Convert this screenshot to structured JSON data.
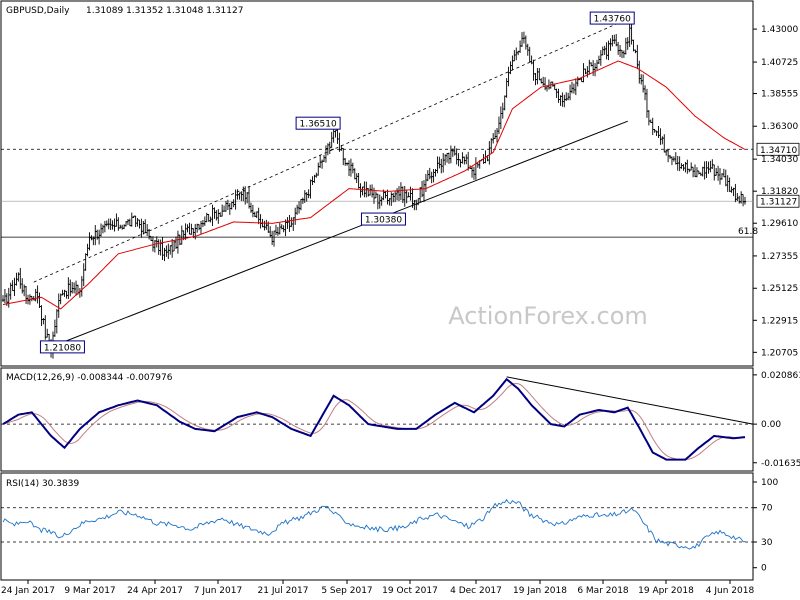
{
  "header": {
    "symbol": "GBPUSD,Daily",
    "ohlc": "1.31089 1.31352 1.31048 1.31127"
  },
  "watermark": "ActionForex.com",
  "colors": {
    "price": "#000000",
    "ma": "#e00000",
    "macd": "#000080",
    "signal": "#c08080",
    "rsi": "#1e73c8",
    "grid": "#000000",
    "label_box": "#000080"
  },
  "chart_data": [
    {
      "type": "candlestick",
      "title": "GBPUSD,Daily",
      "ylim": [
        1.199,
        1.448
      ],
      "y_ticks": [
        "1.43000",
        "1.40725",
        "1.38555",
        "1.36300",
        "1.34030",
        "1.31820",
        "1.29610",
        "1.27355",
        "1.25125",
        "1.22915",
        "1.20705"
      ],
      "x_ticks": [
        "24 Jan 2017",
        "9 Mar 2017",
        "24 Apr 2017",
        "7 Jun 2017",
        "21 Jul 2017",
        "5 Sep 2017",
        "19 Oct 2017",
        "4 Dec 2017",
        "19 Jan 2018",
        "6 Mar 2018",
        "19 Apr 2018",
        "4 Jun 2018"
      ],
      "current_price_label": "1.31127",
      "current_price": 1.31127,
      "hline_label": "1.34710",
      "hline_value": 1.3471,
      "fib_label": "61.8",
      "fib_value": 1.2865,
      "annotations": [
        {
          "text": "1.21080",
          "value": 1.2108
        },
        {
          "text": "1.36510",
          "value": 1.3651
        },
        {
          "text": "1.30380",
          "value": 1.3038
        },
        {
          "text": "1.43760",
          "value": 1.4376
        }
      ],
      "close_anchors": [
        [
          0,
          1.24
        ],
        [
          8,
          1.26
        ],
        [
          12,
          1.245
        ],
        [
          18,
          1.247
        ],
        [
          22,
          1.22
        ],
        [
          25,
          1.21
        ],
        [
          30,
          1.25
        ],
        [
          40,
          1.25
        ],
        [
          45,
          1.287
        ],
        [
          55,
          1.293
        ],
        [
          70,
          1.298
        ],
        [
          78,
          1.283
        ],
        [
          85,
          1.275
        ],
        [
          95,
          1.29
        ],
        [
          108,
          1.302
        ],
        [
          118,
          1.307
        ],
        [
          125,
          1.32
        ],
        [
          132,
          1.3
        ],
        [
          140,
          1.287
        ],
        [
          150,
          1.296
        ],
        [
          160,
          1.322
        ],
        [
          168,
          1.345
        ],
        [
          172,
          1.36
        ],
        [
          178,
          1.34
        ],
        [
          185,
          1.322
        ],
        [
          195,
          1.313
        ],
        [
          205,
          1.318
        ],
        [
          215,
          1.312
        ],
        [
          225,
          1.335
        ],
        [
          235,
          1.345
        ],
        [
          245,
          1.333
        ],
        [
          252,
          1.343
        ],
        [
          258,
          1.365
        ],
        [
          264,
          1.405
        ],
        [
          270,
          1.425
        ],
        [
          276,
          1.4
        ],
        [
          285,
          1.39
        ],
        [
          292,
          1.382
        ],
        [
          300,
          1.396
        ],
        [
          310,
          1.41
        ],
        [
          318,
          1.42
        ],
        [
          322,
          1.41
        ],
        [
          326,
          1.43
        ],
        [
          330,
          1.405
        ],
        [
          336,
          1.37
        ],
        [
          344,
          1.349
        ],
        [
          352,
          1.338
        ],
        [
          360,
          1.33
        ],
        [
          368,
          1.335
        ],
        [
          375,
          1.327
        ],
        [
          383,
          1.313
        ],
        [
          386,
          1.311
        ]
      ],
      "ma_anchors": [
        [
          0,
          1.24
        ],
        [
          20,
          1.245
        ],
        [
          30,
          1.237
        ],
        [
          45,
          1.255
        ],
        [
          60,
          1.275
        ],
        [
          80,
          1.282
        ],
        [
          100,
          1.287
        ],
        [
          120,
          1.297
        ],
        [
          140,
          1.296
        ],
        [
          160,
          1.3
        ],
        [
          180,
          1.32
        ],
        [
          200,
          1.318
        ],
        [
          220,
          1.32
        ],
        [
          240,
          1.332
        ],
        [
          255,
          1.345
        ],
        [
          265,
          1.375
        ],
        [
          280,
          1.39
        ],
        [
          300,
          1.396
        ],
        [
          320,
          1.408
        ],
        [
          330,
          1.403
        ],
        [
          345,
          1.39
        ],
        [
          360,
          1.37
        ],
        [
          375,
          1.355
        ],
        [
          386,
          1.347
        ]
      ]
    },
    {
      "type": "line",
      "title": "MACD(12,26,9) -0.008344 -0.007976",
      "ylim": [
        -0.019,
        0.0225
      ],
      "y_ticks": [
        "0.020861",
        "0.00",
        "-0.016357"
      ],
      "zero_label": "0.00",
      "macd_anchors": [
        [
          0,
          0.0
        ],
        [
          8,
          0.004
        ],
        [
          15,
          0.005
        ],
        [
          25,
          -0.005
        ],
        [
          32,
          -0.01
        ],
        [
          40,
          -0.002
        ],
        [
          50,
          0.005
        ],
        [
          60,
          0.008
        ],
        [
          70,
          0.01
        ],
        [
          80,
          0.008
        ],
        [
          92,
          0.001
        ],
        [
          100,
          -0.002
        ],
        [
          110,
          -0.003
        ],
        [
          122,
          0.003
        ],
        [
          132,
          0.005
        ],
        [
          140,
          0.003
        ],
        [
          150,
          -0.002
        ],
        [
          160,
          -0.005
        ],
        [
          172,
          0.012
        ],
        [
          180,
          0.008
        ],
        [
          190,
          0.0
        ],
        [
          205,
          -0.002
        ],
        [
          215,
          -0.002
        ],
        [
          225,
          0.004
        ],
        [
          235,
          0.009
        ],
        [
          245,
          0.005
        ],
        [
          255,
          0.012
        ],
        [
          262,
          0.019
        ],
        [
          268,
          0.015
        ],
        [
          275,
          0.008
        ],
        [
          285,
          0.0
        ],
        [
          292,
          -0.001
        ],
        [
          300,
          0.004
        ],
        [
          310,
          0.006
        ],
        [
          318,
          0.005
        ],
        [
          325,
          0.007
        ],
        [
          332,
          -0.003
        ],
        [
          338,
          -0.012
        ],
        [
          345,
          -0.015
        ],
        [
          355,
          -0.015
        ],
        [
          362,
          -0.01
        ],
        [
          370,
          -0.005
        ],
        [
          380,
          -0.006
        ],
        [
          386,
          -0.0055
        ]
      ],
      "signal_lag": 4,
      "trendline": {
        "from": [
          262,
          0.02
        ],
        "to": [
          386,
          0.0
        ]
      }
    },
    {
      "type": "line",
      "title": "RSI(14) 30.3839",
      "ylim": [
        -12,
        107
      ],
      "y_ticks": [
        "100",
        "70",
        "30",
        "0"
      ],
      "levels": [
        70,
        30
      ],
      "rsi_anchors": [
        [
          0,
          55
        ],
        [
          6,
          50
        ],
        [
          12,
          55
        ],
        [
          18,
          45
        ],
        [
          24,
          42
        ],
        [
          30,
          35
        ],
        [
          36,
          45
        ],
        [
          44,
          55
        ],
        [
          52,
          58
        ],
        [
          60,
          65
        ],
        [
          70,
          62
        ],
        [
          80,
          52
        ],
        [
          90,
          50
        ],
        [
          98,
          45
        ],
        [
          106,
          52
        ],
        [
          114,
          58
        ],
        [
          122,
          50
        ],
        [
          130,
          45
        ],
        [
          138,
          40
        ],
        [
          146,
          52
        ],
        [
          154,
          58
        ],
        [
          162,
          66
        ],
        [
          168,
          72
        ],
        [
          174,
          60
        ],
        [
          180,
          52
        ],
        [
          186,
          48
        ],
        [
          194,
          45
        ],
        [
          202,
          45
        ],
        [
          210,
          48
        ],
        [
          218,
          58
        ],
        [
          226,
          62
        ],
        [
          234,
          55
        ],
        [
          242,
          48
        ],
        [
          250,
          58
        ],
        [
          256,
          72
        ],
        [
          262,
          78
        ],
        [
          268,
          76
        ],
        [
          274,
          62
        ],
        [
          282,
          55
        ],
        [
          290,
          50
        ],
        [
          298,
          58
        ],
        [
          306,
          62
        ],
        [
          314,
          60
        ],
        [
          322,
          64
        ],
        [
          328,
          68
        ],
        [
          334,
          50
        ],
        [
          340,
          32
        ],
        [
          346,
          28
        ],
        [
          352,
          26
        ],
        [
          360,
          24
        ],
        [
          366,
          35
        ],
        [
          372,
          42
        ],
        [
          378,
          38
        ],
        [
          386,
          30
        ]
      ]
    }
  ]
}
